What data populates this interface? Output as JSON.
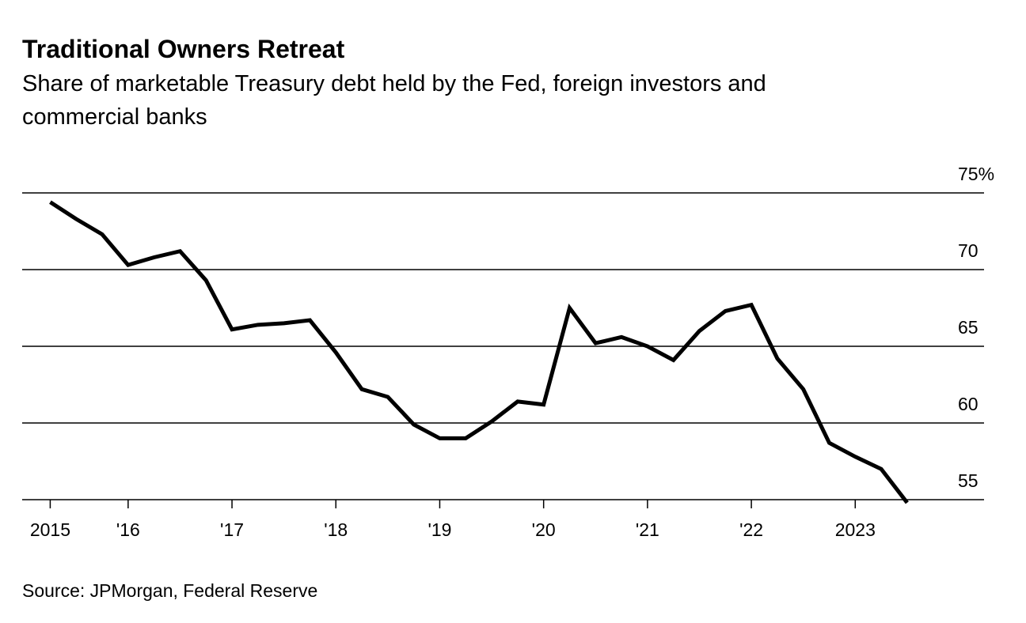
{
  "chart_data": {
    "type": "line",
    "title": "Traditional Owners Retreat",
    "subtitle": [
      "Share of marketable Treasury debt held by the Fed, foreign investors and",
      "commercial banks"
    ],
    "source": "Source: JPMorgan, Federal Reserve",
    "x": [
      2015.25,
      2015.5,
      2015.75,
      2016.0,
      2016.25,
      2016.5,
      2016.75,
      2017.0,
      2017.25,
      2017.5,
      2017.75,
      2018.0,
      2018.25,
      2018.5,
      2018.75,
      2019.0,
      2019.25,
      2019.5,
      2019.75,
      2020.0,
      2020.25,
      2020.5,
      2020.75,
      2021.0,
      2021.25,
      2021.5,
      2021.75,
      2022.0,
      2022.25,
      2022.5,
      2022.75,
      2023.0,
      2023.25,
      2023.5
    ],
    "values": [
      74.4,
      73.3,
      72.3,
      70.3,
      70.8,
      71.2,
      69.3,
      66.1,
      66.4,
      66.5,
      66.7,
      64.6,
      62.2,
      61.7,
      59.9,
      59.0,
      59.0,
      60.1,
      61.4,
      61.2,
      67.5,
      65.2,
      65.6,
      65.0,
      64.1,
      66.0,
      67.3,
      67.7,
      64.2,
      62.2,
      58.7,
      57.8,
      57.0,
      54.8
    ],
    "color": "#000000",
    "xlim": [
      2014.98,
      2024.24
    ],
    "xticks": [
      {
        "value": 2015.25,
        "label": "2015"
      },
      {
        "value": 2016,
        "label": "'16"
      },
      {
        "value": 2017,
        "label": "'17"
      },
      {
        "value": 2018,
        "label": "'18"
      },
      {
        "value": 2019,
        "label": "'19"
      },
      {
        "value": 2020,
        "label": "'20"
      },
      {
        "value": 2021,
        "label": "'21"
      },
      {
        "value": 2022,
        "label": "'22"
      },
      {
        "value": 2023,
        "label": "2023"
      }
    ],
    "ylim": [
      55,
      75
    ],
    "yticks": [
      55,
      60,
      65,
      70,
      {
        "value": 75,
        "label": "75%"
      }
    ],
    "grid": true
  }
}
